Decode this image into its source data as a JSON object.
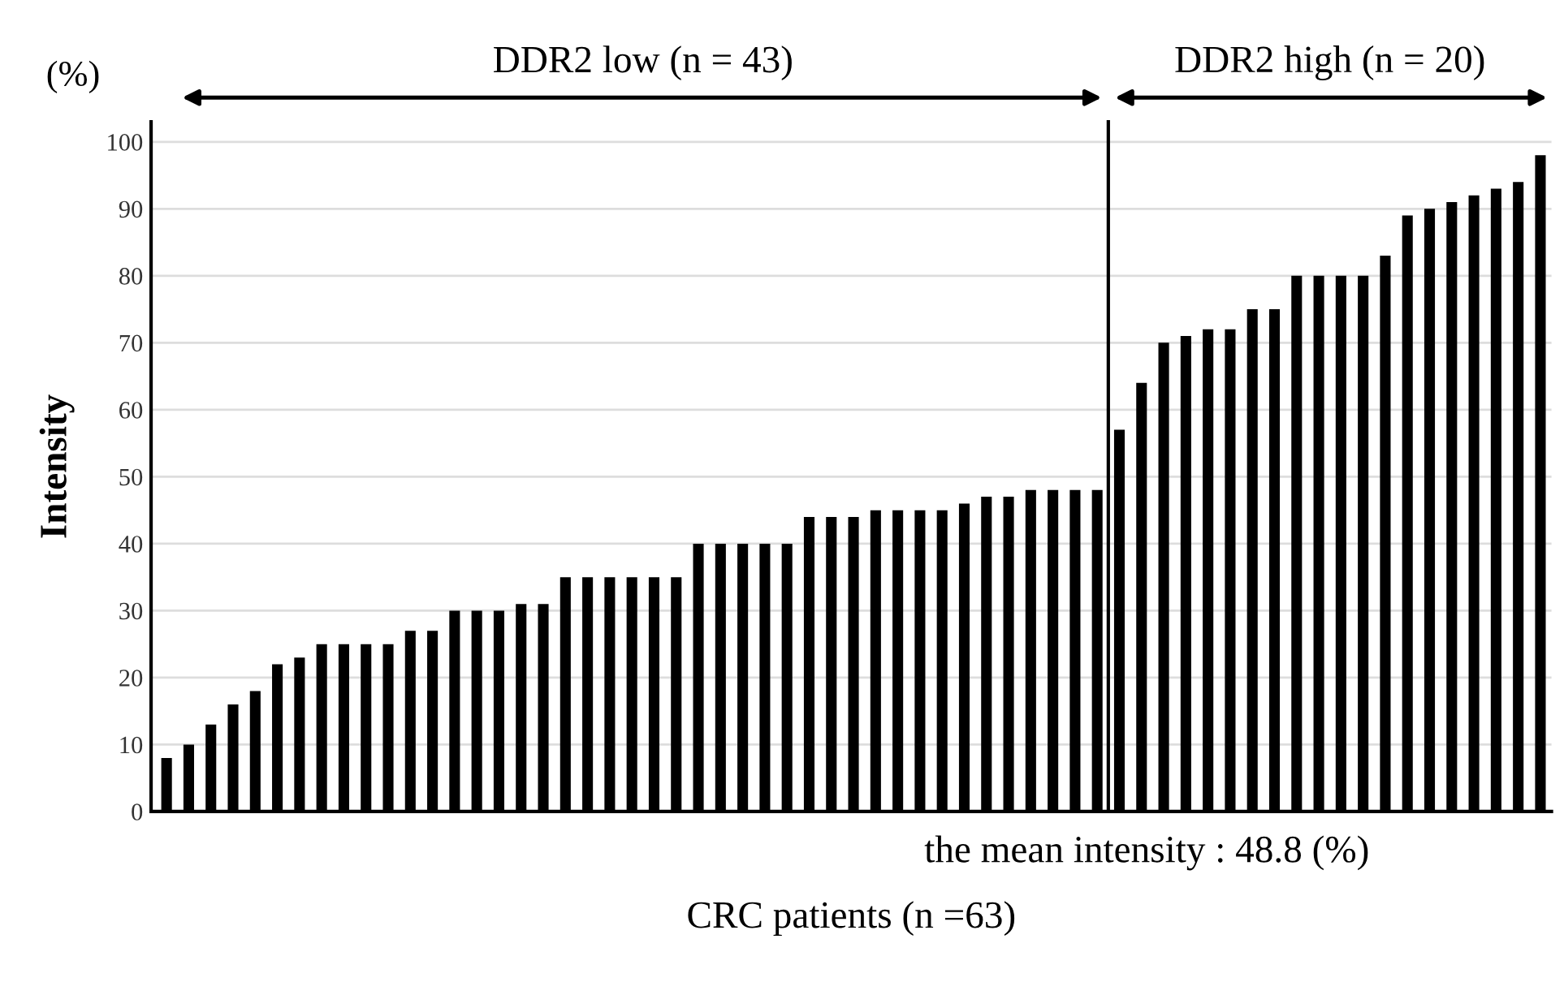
{
  "chart_data": {
    "type": "bar",
    "xlabel": "CRC patients (n =63)",
    "ylabel": "Intensity",
    "categories": [
      null,
      null,
      null,
      null,
      null,
      null,
      null,
      null,
      null,
      null,
      null,
      null,
      null,
      null,
      null,
      null,
      null,
      null,
      null,
      null,
      null,
      null,
      null,
      null,
      null,
      null,
      null,
      null,
      null,
      null,
      null,
      null,
      null,
      null,
      null,
      null,
      null,
      null,
      null,
      null,
      null,
      null,
      null,
      null,
      null,
      null,
      null,
      null,
      null,
      null,
      null,
      null,
      null,
      null,
      null,
      null,
      null,
      null,
      null,
      null,
      null,
      null,
      null
    ],
    "values": [
      8,
      10,
      13,
      16,
      18,
      22,
      23,
      25,
      25,
      25,
      25,
      27,
      27,
      30,
      30,
      30,
      31,
      31,
      35,
      35,
      35,
      35,
      35,
      35,
      40,
      40,
      40,
      40,
      40,
      44,
      44,
      44,
      45,
      45,
      45,
      45,
      46,
      47,
      47,
      48,
      48,
      48,
      48,
      57,
      64,
      70,
      71,
      72,
      72,
      75,
      75,
      80,
      80,
      80,
      80,
      83,
      89,
      90,
      91,
      92,
      93,
      94,
      98
    ],
    "color": "#000000",
    "ylim": [
      0,
      103
    ],
    "yticks": [
      0,
      10,
      20,
      30,
      40,
      50,
      60,
      70,
      80,
      90,
      100
    ],
    "grid": "y",
    "annotations": [
      "(%)",
      "DDR2 low (n = 43)",
      "DDR2 high (n = 20)",
      "the mean intensity : 48.8 (%)"
    ]
  }
}
